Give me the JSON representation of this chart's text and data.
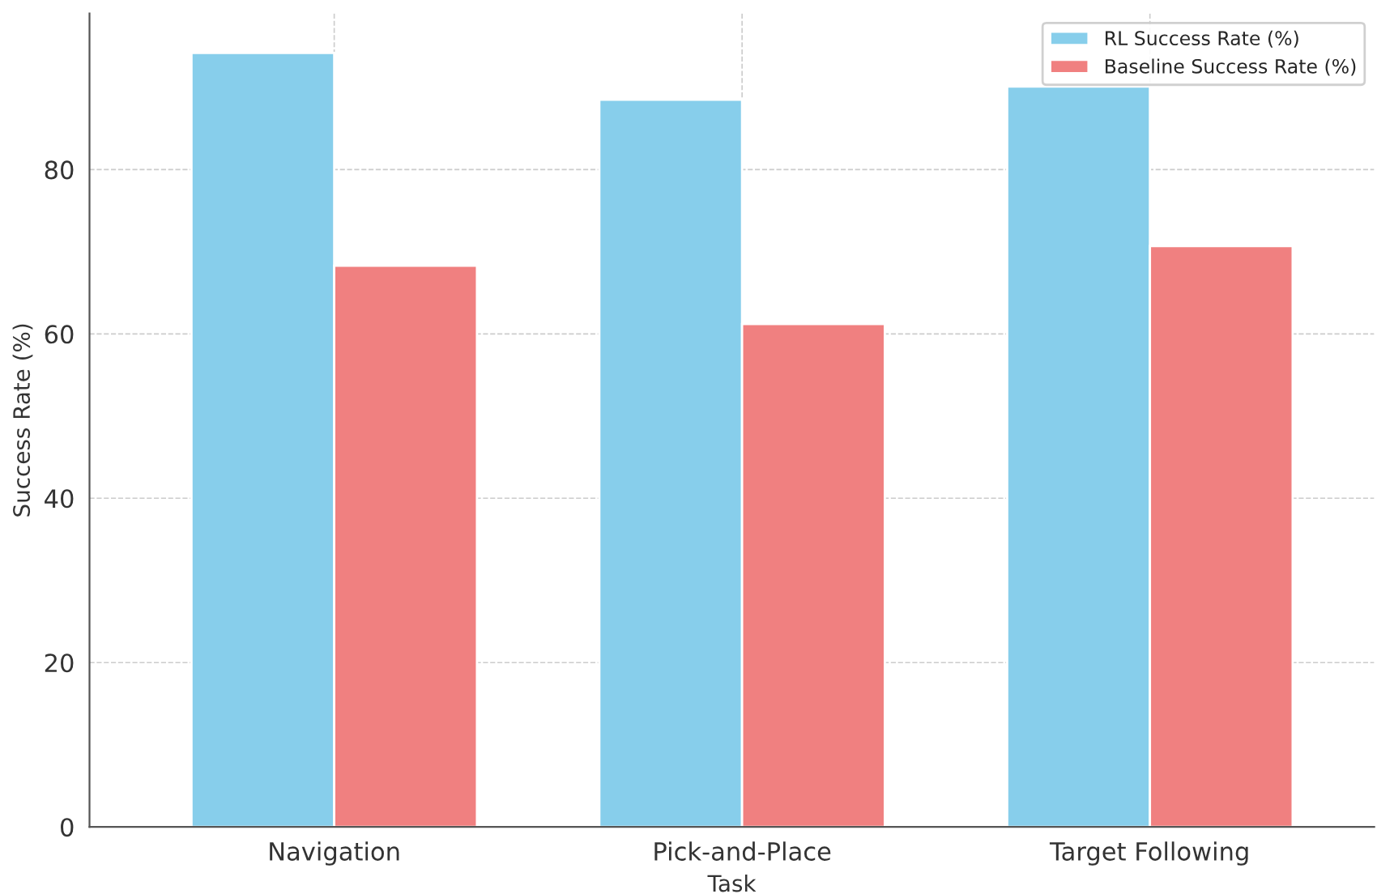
{
  "chart_data": {
    "type": "bar",
    "xlabel": "Task",
    "ylabel": "Success Rate (%)",
    "categories": [
      "Navigation",
      "Pick-and-Place",
      "Target Following"
    ],
    "series": [
      {
        "name": "RL Success Rate (%)",
        "color": "#87ceeb",
        "values": [
          94.2,
          88.5,
          90.1
        ]
      },
      {
        "name": "Baseline Success Rate (%)",
        "color": "#f08080",
        "values": [
          68.3,
          61.2,
          70.7
        ]
      }
    ],
    "ylim": [
      0,
      99
    ],
    "yticks": [
      0,
      20,
      40,
      60,
      80
    ],
    "grid": true,
    "legend": "top right"
  }
}
